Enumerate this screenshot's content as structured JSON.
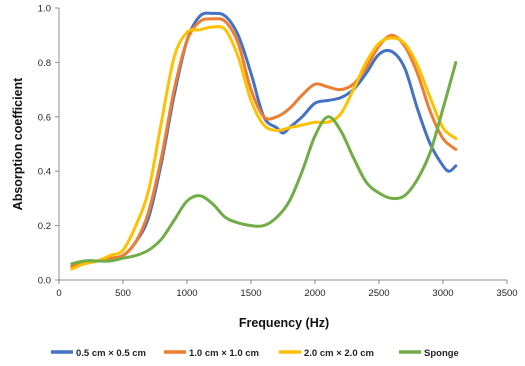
{
  "chart_data": {
    "type": "line",
    "title": "",
    "xlabel": "Frequency (Hz)",
    "ylabel": "Absorption coefficient",
    "xlim": [
      0,
      3500
    ],
    "ylim": [
      0,
      1.0
    ],
    "x_ticks": [
      0,
      500,
      1000,
      1500,
      2000,
      2500,
      3000,
      3500
    ],
    "y_ticks": [
      0.0,
      0.2,
      0.4,
      0.6,
      0.8,
      1.0
    ],
    "x_tick_labels": [
      "0",
      "500",
      "1000",
      "1500",
      "2000",
      "2500",
      "3000",
      "3500"
    ],
    "y_tick_labels": [
      "0.0",
      "0.2",
      "0.4",
      "0.6",
      "0.8",
      "1.0"
    ],
    "grid": false,
    "legend_position": "bottom",
    "series": [
      {
        "name": "0.5 cm × 0.5 cm",
        "color": "#4472C4",
        "points": [
          [
            100,
            0.05
          ],
          [
            200,
            0.07
          ],
          [
            300,
            0.07
          ],
          [
            400,
            0.08
          ],
          [
            500,
            0.09
          ],
          [
            600,
            0.14
          ],
          [
            700,
            0.23
          ],
          [
            800,
            0.43
          ],
          [
            900,
            0.68
          ],
          [
            1000,
            0.88
          ],
          [
            1100,
            0.97
          ],
          [
            1200,
            0.98
          ],
          [
            1300,
            0.97
          ],
          [
            1400,
            0.9
          ],
          [
            1500,
            0.76
          ],
          [
            1600,
            0.6
          ],
          [
            1700,
            0.56
          ],
          [
            1750,
            0.54
          ],
          [
            1800,
            0.56
          ],
          [
            1900,
            0.6
          ],
          [
            2000,
            0.65
          ],
          [
            2100,
            0.66
          ],
          [
            2200,
            0.67
          ],
          [
            2300,
            0.7
          ],
          [
            2400,
            0.76
          ],
          [
            2500,
            0.83
          ],
          [
            2600,
            0.84
          ],
          [
            2700,
            0.78
          ],
          [
            2800,
            0.63
          ],
          [
            2900,
            0.5
          ],
          [
            3000,
            0.42
          ],
          [
            3050,
            0.4
          ],
          [
            3100,
            0.42
          ]
        ]
      },
      {
        "name": "1.0 cm × 1.0 cm",
        "color": "#ED7D31",
        "points": [
          [
            100,
            0.05
          ],
          [
            200,
            0.06
          ],
          [
            300,
            0.07
          ],
          [
            400,
            0.08
          ],
          [
            500,
            0.09
          ],
          [
            600,
            0.14
          ],
          [
            700,
            0.25
          ],
          [
            800,
            0.45
          ],
          [
            900,
            0.7
          ],
          [
            1000,
            0.88
          ],
          [
            1100,
            0.95
          ],
          [
            1200,
            0.96
          ],
          [
            1300,
            0.95
          ],
          [
            1400,
            0.87
          ],
          [
            1500,
            0.7
          ],
          [
            1600,
            0.6
          ],
          [
            1700,
            0.6
          ],
          [
            1800,
            0.63
          ],
          [
            1900,
            0.68
          ],
          [
            2000,
            0.72
          ],
          [
            2100,
            0.71
          ],
          [
            2200,
            0.7
          ],
          [
            2300,
            0.72
          ],
          [
            2400,
            0.78
          ],
          [
            2500,
            0.86
          ],
          [
            2600,
            0.9
          ],
          [
            2700,
            0.86
          ],
          [
            2800,
            0.76
          ],
          [
            2900,
            0.62
          ],
          [
            3000,
            0.52
          ],
          [
            3100,
            0.48
          ]
        ]
      },
      {
        "name": "2.0 cm × 2.0 cm",
        "color": "#FFC000",
        "points": [
          [
            100,
            0.04
          ],
          [
            200,
            0.06
          ],
          [
            300,
            0.07
          ],
          [
            400,
            0.09
          ],
          [
            500,
            0.11
          ],
          [
            600,
            0.2
          ],
          [
            700,
            0.33
          ],
          [
            800,
            0.58
          ],
          [
            900,
            0.82
          ],
          [
            1000,
            0.91
          ],
          [
            1100,
            0.92
          ],
          [
            1200,
            0.93
          ],
          [
            1300,
            0.92
          ],
          [
            1400,
            0.82
          ],
          [
            1500,
            0.66
          ],
          [
            1600,
            0.57
          ],
          [
            1700,
            0.55
          ],
          [
            1800,
            0.56
          ],
          [
            1900,
            0.57
          ],
          [
            2000,
            0.58
          ],
          [
            2100,
            0.58
          ],
          [
            2200,
            0.61
          ],
          [
            2300,
            0.7
          ],
          [
            2400,
            0.8
          ],
          [
            2500,
            0.87
          ],
          [
            2600,
            0.89
          ],
          [
            2700,
            0.87
          ],
          [
            2800,
            0.79
          ],
          [
            2900,
            0.67
          ],
          [
            3000,
            0.56
          ],
          [
            3100,
            0.52
          ]
        ]
      },
      {
        "name": "Sponge",
        "color": "#70AD47",
        "points": [
          [
            100,
            0.06
          ],
          [
            200,
            0.07
          ],
          [
            300,
            0.07
          ],
          [
            400,
            0.07
          ],
          [
            500,
            0.08
          ],
          [
            600,
            0.09
          ],
          [
            700,
            0.11
          ],
          [
            800,
            0.15
          ],
          [
            900,
            0.22
          ],
          [
            1000,
            0.29
          ],
          [
            1100,
            0.31
          ],
          [
            1200,
            0.28
          ],
          [
            1300,
            0.23
          ],
          [
            1400,
            0.21
          ],
          [
            1500,
            0.2
          ],
          [
            1600,
            0.2
          ],
          [
            1700,
            0.23
          ],
          [
            1800,
            0.29
          ],
          [
            1900,
            0.4
          ],
          [
            2000,
            0.53
          ],
          [
            2100,
            0.6
          ],
          [
            2200,
            0.55
          ],
          [
            2300,
            0.45
          ],
          [
            2400,
            0.36
          ],
          [
            2500,
            0.32
          ],
          [
            2600,
            0.3
          ],
          [
            2700,
            0.31
          ],
          [
            2800,
            0.37
          ],
          [
            2900,
            0.47
          ],
          [
            3000,
            0.63
          ],
          [
            3100,
            0.8
          ]
        ]
      }
    ]
  }
}
